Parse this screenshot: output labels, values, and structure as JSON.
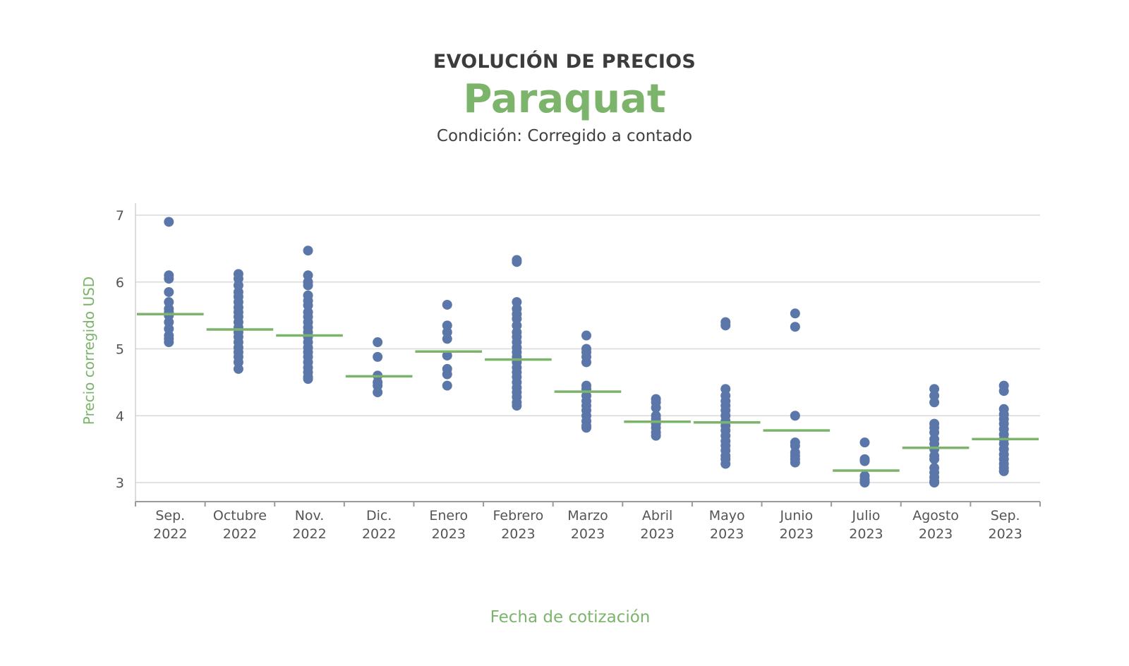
{
  "header": {
    "supertitle": "EVOLUCIÓN DE PRECIOS",
    "title": "Paraquat",
    "subtitle": "Condición: Corregido a contado"
  },
  "colors": {
    "points": "#5b76a8",
    "mean_line": "#7cb46b",
    "title": "#7cb46b",
    "grid": "#d9d9d9"
  },
  "chart_data": {
    "type": "scatter",
    "xlabel": "Fecha de cotización",
    "ylabel": "Precio corregido  USD",
    "ylim": [
      2.75,
      7.2
    ],
    "yticks": [
      3,
      4,
      5,
      6,
      7
    ],
    "grid": "horizontal",
    "categories": [
      {
        "line1": "Sep.",
        "line2": "2022"
      },
      {
        "line1": "Octubre",
        "line2": "2022"
      },
      {
        "line1": "Nov.",
        "line2": "2022"
      },
      {
        "line1": "Dic.",
        "line2": "2022"
      },
      {
        "line1": "Enero",
        "line2": "2023"
      },
      {
        "line1": "Febrero",
        "line2": "2023"
      },
      {
        "line1": "Marzo",
        "line2": "2023"
      },
      {
        "line1": "Abril",
        "line2": "2023"
      },
      {
        "line1": "Mayo",
        "line2": "2023"
      },
      {
        "line1": "Junio",
        "line2": "2023"
      },
      {
        "line1": "Julio",
        "line2": "2023"
      },
      {
        "line1": "Agosto",
        "line2": "2023"
      },
      {
        "line1": "Sep.",
        "line2": "2023"
      }
    ],
    "means": [
      5.52,
      5.29,
      5.2,
      4.59,
      4.96,
      4.84,
      4.36,
      3.91,
      3.9,
      3.78,
      3.18,
      3.52,
      3.65
    ],
    "points": [
      [
        6.9,
        6.1,
        6.05,
        5.85,
        5.7,
        5.6,
        5.55,
        5.5,
        5.4,
        5.3,
        5.2,
        5.15,
        5.1
      ],
      [
        6.12,
        6.05,
        5.95,
        5.85,
        5.78,
        5.7,
        5.62,
        5.55,
        5.48,
        5.4,
        5.32,
        5.25,
        5.18,
        5.1,
        5.02,
        4.95,
        4.88,
        4.8,
        4.7
      ],
      [
        6.47,
        6.1,
        6.0,
        5.95,
        5.8,
        5.72,
        5.65,
        5.55,
        5.48,
        5.4,
        5.32,
        5.25,
        5.18,
        5.1,
        5.02,
        4.95,
        4.88,
        4.8,
        4.72,
        4.65,
        4.58,
        4.55
      ],
      [
        5.1,
        4.88,
        4.6,
        4.5,
        4.45,
        4.35
      ],
      [
        5.66,
        5.35,
        5.25,
        5.15,
        4.9,
        4.7,
        4.62,
        4.45
      ],
      [
        6.33,
        6.3,
        5.7,
        5.6,
        5.52,
        5.45,
        5.35,
        5.25,
        5.18,
        5.1,
        5.02,
        4.95,
        4.88,
        4.8,
        4.72,
        4.65,
        4.58,
        4.5,
        4.42,
        4.35,
        4.28,
        4.2,
        4.15
      ],
      [
        5.2,
        5.0,
        4.95,
        4.88,
        4.8,
        4.45,
        4.4,
        4.3,
        4.22,
        4.15,
        4.08,
        4.0,
        3.92,
        3.85,
        3.82
      ],
      [
        4.25,
        4.2,
        4.12,
        4.0,
        3.95,
        3.88,
        3.82,
        3.75,
        3.7
      ],
      [
        5.4,
        5.35,
        4.4,
        4.3,
        4.22,
        4.15,
        4.08,
        4.0,
        3.92,
        3.85,
        3.78,
        3.7,
        3.62,
        3.55,
        3.48,
        3.4,
        3.35,
        3.28
      ],
      [
        5.53,
        5.33,
        4.0,
        3.6,
        3.55,
        3.45,
        3.4,
        3.35,
        3.3
      ],
      [
        3.6,
        3.35,
        3.32,
        3.1,
        3.05,
        3.02,
        3.0
      ],
      [
        4.4,
        4.3,
        4.2,
        3.88,
        3.82,
        3.75,
        3.65,
        3.58,
        3.5,
        3.4,
        3.35,
        3.22,
        3.15,
        3.08,
        3.02,
        3.0
      ],
      [
        4.45,
        4.37,
        4.1,
        4.02,
        3.95,
        3.88,
        3.8,
        3.72,
        3.65,
        3.58,
        3.5,
        3.42,
        3.35,
        3.28,
        3.22,
        3.17
      ]
    ]
  }
}
